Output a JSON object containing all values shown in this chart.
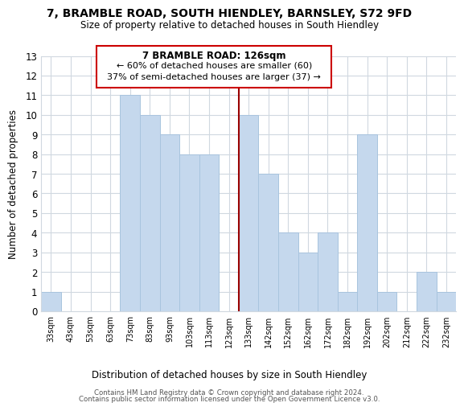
{
  "title": "7, BRAMBLE ROAD, SOUTH HIENDLEY, BARNSLEY, S72 9FD",
  "subtitle": "Size of property relative to detached houses in South Hiendley",
  "xlabel": "Distribution of detached houses by size in South Hiendley",
  "ylabel": "Number of detached properties",
  "bar_labels": [
    "33sqm",
    "43sqm",
    "53sqm",
    "63sqm",
    "73sqm",
    "83sqm",
    "93sqm",
    "103sqm",
    "113sqm",
    "123sqm",
    "133sqm",
    "142sqm",
    "152sqm",
    "162sqm",
    "172sqm",
    "182sqm",
    "192sqm",
    "202sqm",
    "212sqm",
    "222sqm",
    "232sqm"
  ],
  "bar_values": [
    1,
    0,
    0,
    0,
    11,
    10,
    9,
    8,
    8,
    0,
    10,
    7,
    4,
    3,
    4,
    1,
    9,
    1,
    0,
    2,
    1
  ],
  "bar_color": "#c5d8ed",
  "bar_edge_color": "#a8c4de",
  "property_line_x_label": "123sqm",
  "property_line_color": "#990000",
  "ylim": [
    0,
    13
  ],
  "yticks": [
    0,
    1,
    2,
    3,
    4,
    5,
    6,
    7,
    8,
    9,
    10,
    11,
    12,
    13
  ],
  "annotation_title": "7 BRAMBLE ROAD: 126sqm",
  "annotation_line1": "← 60% of detached houses are smaller (60)",
  "annotation_line2": "37% of semi-detached houses are larger (37) →",
  "annotation_box_color": "#ffffff",
  "annotation_box_edge": "#cc0000",
  "footer1": "Contains HM Land Registry data © Crown copyright and database right 2024.",
  "footer2": "Contains public sector information licensed under the Open Government Licence v3.0.",
  "bg_color": "#ffffff",
  "grid_color": "#d0d8e0"
}
